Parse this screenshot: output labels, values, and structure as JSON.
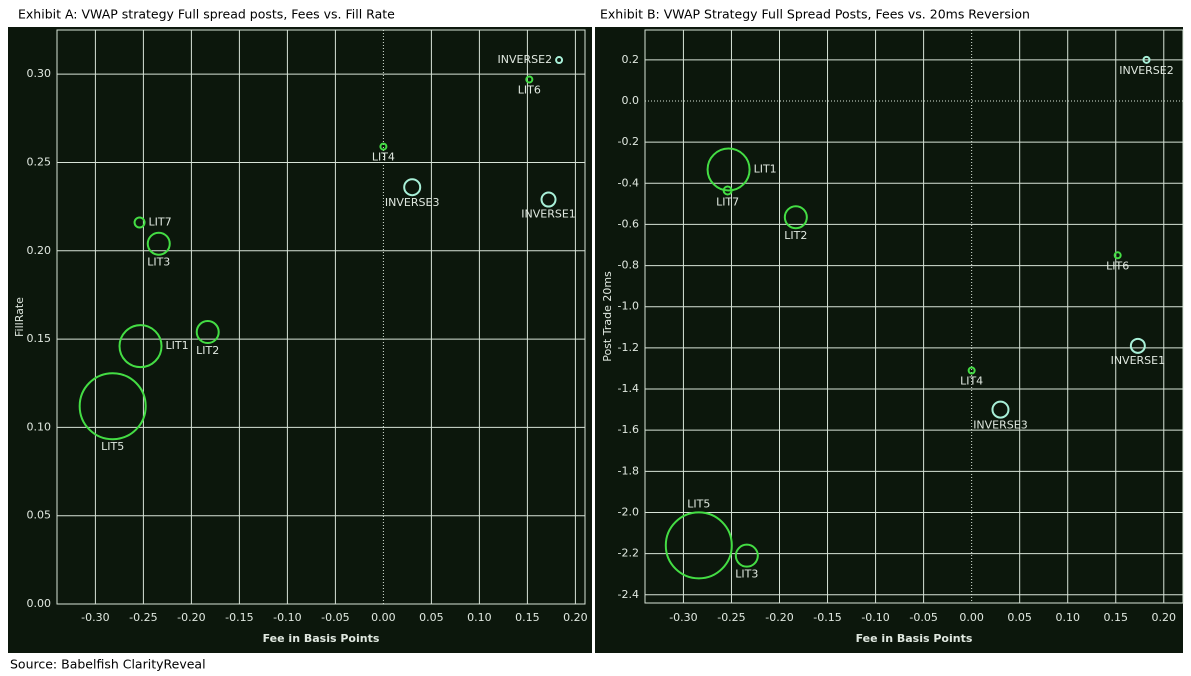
{
  "chart_data": [
    {
      "type": "bubble",
      "title": "Exhibit A: VWAP strategy Full spread posts, Fees vs. Fill Rate",
      "x_label": "Fee in Basis Points",
      "y_label": "FillRate",
      "labels": [
        "INVERSE2",
        "LIT6",
        "LIT4",
        "INVERSE3",
        "INVERSE1",
        "LIT7",
        "LIT3",
        "LIT2",
        "LIT1",
        "LIT5"
      ],
      "x": [
        0.183,
        0.152,
        0.0,
        0.03,
        0.172,
        -0.254,
        -0.234,
        -0.183,
        -0.253,
        -0.282
      ],
      "values": [
        0.308,
        0.297,
        0.259,
        0.236,
        0.229,
        0.216,
        0.204,
        0.154,
        0.146,
        0.112
      ],
      "sizes": [
        3,
        3,
        3,
        8,
        7,
        5,
        11,
        11,
        21,
        33
      ],
      "colors": [
        "#a8f0d8",
        "#44dd44",
        "#44dd44",
        "#a8f0d8",
        "#a8f0d8",
        "#44dd44",
        "#44dd44",
        "#44dd44",
        "#44dd44",
        "#44dd44"
      ],
      "xlim": [
        -0.34,
        0.21
      ],
      "ylim": [
        0,
        0.325
      ],
      "xticks": [
        {
          "value": -0.3,
          "label": "-0.30"
        },
        -0.25,
        {
          "value": -0.2,
          "label": "-0.20"
        },
        -0.15,
        {
          "value": -0.1,
          "label": "-0.10"
        },
        -0.05,
        {
          "value": 0,
          "label": "0.00"
        },
        0.05,
        {
          "value": 0.1,
          "label": "0.10"
        },
        0.15,
        {
          "value": 0.2,
          "label": "0.20"
        }
      ],
      "yticks": [
        {
          "value": 0,
          "label": "0.00"
        },
        0.05,
        {
          "value": 0.1,
          "label": "0.10"
        },
        0.15,
        {
          "value": 0.2,
          "label": "0.20"
        },
        0.25,
        {
          "value": 0.3,
          "label": "0.30"
        }
      ],
      "grid": true
    },
    {
      "type": "bubble",
      "title": "Exhibit B: VWAP Strategy Full Spread Posts, Fees vs. 20ms Reversion",
      "x_label": "Fee in Basis Points",
      "y_label": "Post Trade 20ms",
      "labels": [
        "INVERSE2",
        "LIT1",
        "LIT7",
        "LIT2",
        "LIT6",
        "INVERSE1",
        "LIT4",
        "INVERSE3",
        "LIT5",
        "LIT3"
      ],
      "x": [
        0.182,
        -0.253,
        -0.254,
        -0.183,
        0.152,
        0.173,
        0.0,
        0.03,
        -0.284,
        -0.234
      ],
      "values": [
        0.2,
        -0.333,
        -0.435,
        -0.565,
        -0.75,
        -1.19,
        -1.31,
        -1.5,
        -2.16,
        -2.21
      ],
      "sizes": [
        3,
        21,
        4,
        11,
        3,
        7,
        3,
        8,
        33,
        11
      ],
      "colors": [
        "#a8f0d8",
        "#44dd44",
        "#44dd44",
        "#44dd44",
        "#44dd44",
        "#a8f0d8",
        "#44dd44",
        "#a8f0d8",
        "#44dd44",
        "#44dd44"
      ],
      "xlim": [
        -0.34,
        0.22
      ],
      "ylim": [
        -2.44,
        0.345
      ],
      "xticks": [
        {
          "value": -0.3,
          "label": "-0.30"
        },
        -0.25,
        {
          "value": -0.2,
          "label": "-0.20"
        },
        -0.15,
        {
          "value": -0.1,
          "label": "-0.10"
        },
        -0.05,
        {
          "value": 0,
          "label": "0.00"
        },
        0.05,
        {
          "value": 0.1,
          "label": "0.10"
        },
        0.15,
        {
          "value": 0.2,
          "label": "0.20"
        }
      ],
      "yticks": [
        0.2,
        {
          "value": 0,
          "label": "0.0"
        },
        -0.2,
        -0.4,
        -0.6,
        -0.8,
        {
          "value": -1,
          "label": "-1.0"
        },
        -1.2,
        -1.4,
        -1.6,
        -1.8,
        {
          "value": -2,
          "label": "-2.0"
        },
        -2.2,
        -2.4
      ],
      "grid": true
    }
  ],
  "source": "Source:  Babelfish ClarityReveal"
}
